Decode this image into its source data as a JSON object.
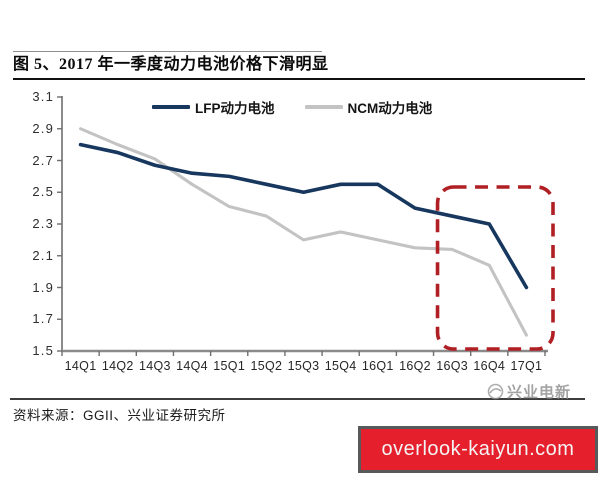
{
  "header": {
    "title": "图 5、2017 年一季度动力电池价格下滑明显"
  },
  "chart_data": {
    "type": "line",
    "title": "图 5、2017 年一季度动力电池价格下滑明显",
    "categories": [
      "14Q1",
      "14Q2",
      "14Q3",
      "14Q4",
      "15Q1",
      "15Q2",
      "15Q3",
      "15Q4",
      "16Q1",
      "16Q2",
      "16Q3",
      "16Q4",
      "17Q1"
    ],
    "series": [
      {
        "name": "LFP动力电池",
        "color": "#17375E",
        "values": [
          2.8,
          2.75,
          2.67,
          2.62,
          2.6,
          2.55,
          2.5,
          2.55,
          2.55,
          2.4,
          2.35,
          2.3,
          1.9
        ]
      },
      {
        "name": "NCM动力电池",
        "color": "#C3C3C3",
        "values": [
          2.9,
          2.8,
          2.71,
          2.55,
          2.41,
          2.35,
          2.2,
          2.25,
          2.2,
          2.15,
          2.14,
          2.04,
          1.6
        ]
      }
    ],
    "xlabel": "",
    "ylabel": "",
    "ylim": [
      1.5,
      3.1
    ],
    "ytick_step": 0.2,
    "grid": false,
    "legend_position": "top-center",
    "annotation_box": {
      "categories": [
        "16Q3",
        "16Q4",
        "17Q1"
      ],
      "color": "#B01F24",
      "style": "dashed-rounded"
    }
  },
  "footer": {
    "source": "资料来源：GGII、兴业证券研究所"
  },
  "watermark": {
    "text": "兴业电新"
  },
  "banner": {
    "text": "overlook-kaiyun.com",
    "bg": "#E61F2D",
    "border": "#58595B"
  }
}
